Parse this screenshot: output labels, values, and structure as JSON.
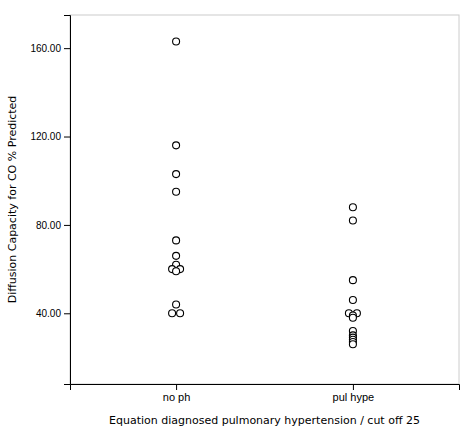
{
  "chart_data": {
    "type": "strip",
    "categories": [
      "no ph",
      "pul hype"
    ],
    "values": [
      [
        163,
        116,
        103,
        95,
        73,
        66,
        62,
        60,
        60,
        59,
        44,
        40,
        40
      ],
      [
        88,
        82,
        55,
        46,
        40,
        40,
        39,
        38,
        32,
        30,
        29,
        28,
        27,
        26
      ]
    ],
    "ylabel": "Diffusion Capacity for CO % Predicted",
    "xlabel": "Equation diagnosed pulmonary hypertension / cut off 25",
    "ylim": [
      8,
      175
    ],
    "yticks": [
      {
        "value": 40.0,
        "label": "40.00"
      },
      {
        "value": 80.0,
        "label": "80.00"
      },
      {
        "value": 120.0,
        "label": "120.00"
      },
      {
        "value": 160.0,
        "label": "160.00"
      }
    ],
    "color": "#000000",
    "marker": "circle-open"
  }
}
